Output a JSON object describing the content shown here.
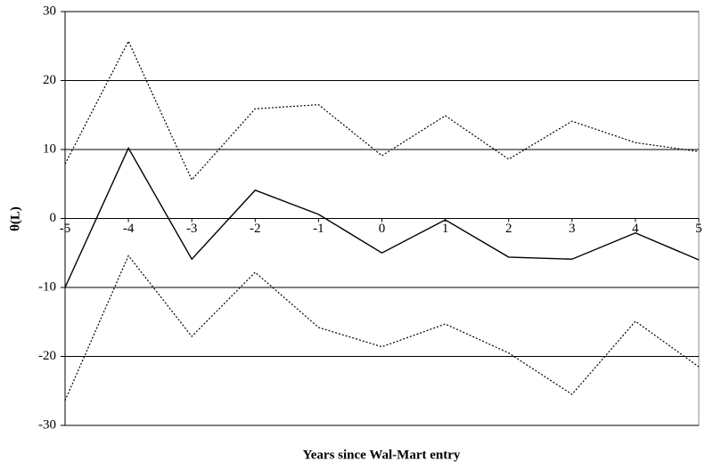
{
  "chart_data": {
    "type": "line",
    "x_label": "Years since Wal-Mart entry",
    "y_label": "θ(L)",
    "x": [
      -5,
      -4,
      -3,
      -2,
      -1,
      0,
      1,
      2,
      3,
      4,
      5
    ],
    "xlim": [
      -5,
      5
    ],
    "xticks": [
      -5,
      -4,
      -3,
      -2,
      -1,
      0,
      1,
      2,
      3,
      4,
      5
    ],
    "ylim": [
      -30,
      30
    ],
    "yticks": [
      -30,
      -20,
      -10,
      0,
      10,
      20,
      30
    ],
    "grid": true,
    "series": [
      {
        "color": "#000000",
        "line_style": "solid",
        "values": [
          -10,
          10.2,
          -5.9,
          4.1,
          0.6,
          -5.0,
          -0.2,
          -5.6,
          -5.9,
          -2.1,
          -6.0
        ]
      },
      {
        "color": "#000000",
        "line_style": "dotted",
        "values": [
          7.9,
          25.7,
          5.6,
          15.9,
          16.5,
          9.1,
          14.9,
          8.6,
          14.1,
          11.0,
          9.7
        ]
      },
      {
        "color": "#000000",
        "line_style": "dotted",
        "values": [
          -26.4,
          -5.4,
          -17.1,
          -7.8,
          -15.8,
          -18.6,
          -15.3,
          -19.5,
          -25.5,
          -14.9,
          -21.5
        ]
      }
    ]
  }
}
